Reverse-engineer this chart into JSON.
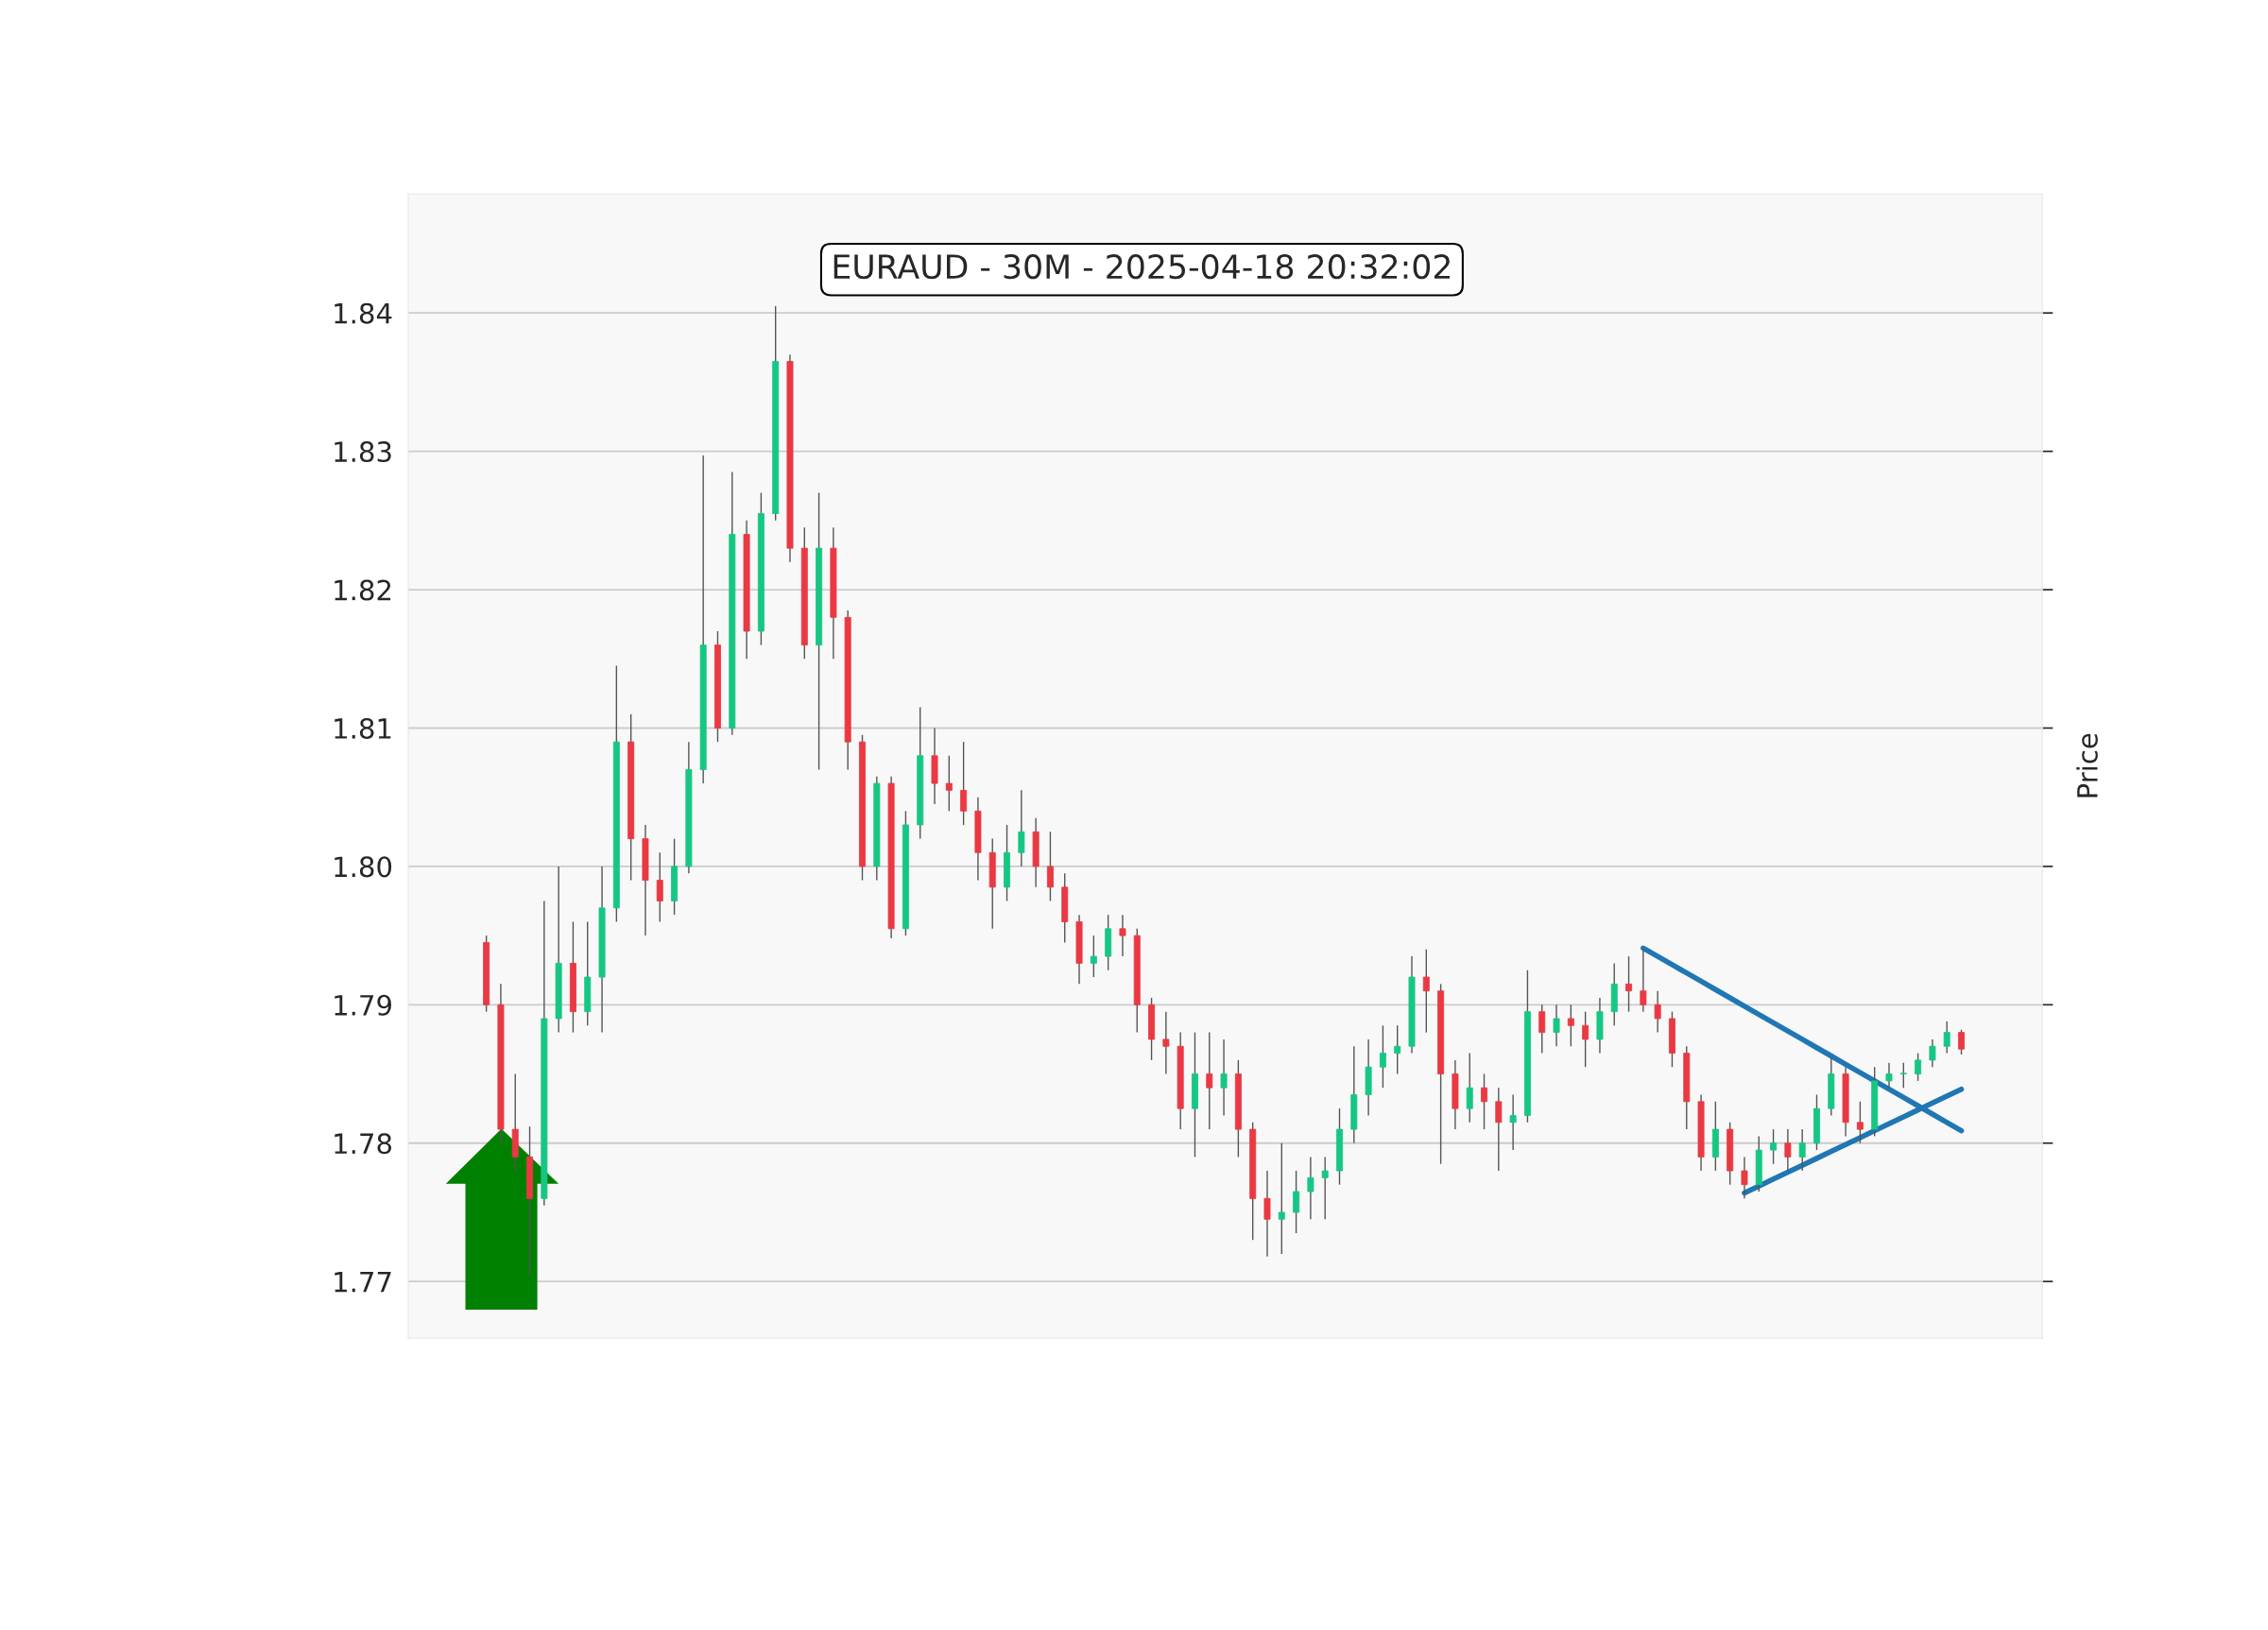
{
  "chart_data": {
    "type": "candlestick",
    "title": "EURAUD - 30M - 2025-04-18 20:32:02",
    "ylabel": "Price",
    "categories": [
      null,
      null,
      null,
      null,
      null,
      null,
      null,
      null,
      null,
      null,
      null,
      null,
      null,
      null,
      null,
      null,
      null,
      null,
      null,
      null,
      null,
      null,
      null,
      null,
      null,
      null,
      null,
      null,
      null,
      null,
      null,
      null,
      null,
      null,
      null,
      null,
      null,
      null,
      null,
      null,
      null,
      null,
      null,
      null,
      null,
      null,
      null,
      null,
      null,
      null,
      null,
      null,
      null,
      null,
      null,
      null,
      null,
      null,
      null,
      null,
      null,
      null,
      null,
      null,
      null,
      null,
      null,
      null,
      null,
      null,
      null,
      null,
      null,
      null,
      null,
      null,
      null,
      null,
      null,
      null,
      null,
      null,
      null,
      null,
      null,
      null,
      null,
      null,
      null,
      null,
      null,
      null,
      null,
      null,
      null,
      null,
      null,
      null,
      null,
      null,
      null,
      null,
      null
    ],
    "ohlc": [
      [
        1.7945,
        1.795,
        1.7895,
        1.79
      ],
      [
        1.79,
        1.7915,
        1.78,
        1.781
      ],
      [
        1.781,
        1.785,
        1.778,
        1.779
      ],
      [
        1.779,
        1.7812,
        1.7705,
        1.776
      ],
      [
        1.776,
        1.7975,
        1.7755,
        1.789
      ],
      [
        1.789,
        1.8,
        1.788,
        1.793
      ],
      [
        1.793,
        1.796,
        1.788,
        1.7895
      ],
      [
        1.7895,
        1.796,
        1.7885,
        1.792
      ],
      [
        1.792,
        1.8,
        1.788,
        1.797
      ],
      [
        1.797,
        1.8145,
        1.796,
        1.809
      ],
      [
        1.809,
        1.811,
        1.799,
        1.802
      ],
      [
        1.802,
        1.803,
        1.795,
        1.799
      ],
      [
        1.799,
        1.801,
        1.796,
        1.7975
      ],
      [
        1.7975,
        1.802,
        1.7965,
        1.8
      ],
      [
        1.8,
        1.809,
        1.7995,
        1.807
      ],
      [
        1.807,
        1.8297,
        1.806,
        1.816
      ],
      [
        1.816,
        1.817,
        1.809,
        1.81
      ],
      [
        1.81,
        1.8285,
        1.8095,
        1.824
      ],
      [
        1.824,
        1.825,
        1.815,
        1.817
      ],
      [
        1.817,
        1.827,
        1.816,
        1.8255
      ],
      [
        1.8255,
        1.8405,
        1.825,
        1.8365
      ],
      [
        1.8365,
        1.837,
        1.822,
        1.823
      ],
      [
        1.823,
        1.8245,
        1.815,
        1.816
      ],
      [
        1.816,
        1.827,
        1.807,
        1.823
      ],
      [
        1.823,
        1.8245,
        1.815,
        1.818
      ],
      [
        1.818,
        1.8185,
        1.807,
        1.809
      ],
      [
        1.809,
        1.8095,
        1.799,
        1.8
      ],
      [
        1.8,
        1.8065,
        1.799,
        1.806
      ],
      [
        1.806,
        1.8065,
        1.7948,
        1.7955
      ],
      [
        1.7955,
        1.804,
        1.795,
        1.803
      ],
      [
        1.803,
        1.8115,
        1.802,
        1.808
      ],
      [
        1.808,
        1.81,
        1.8045,
        1.806
      ],
      [
        1.806,
        1.808,
        1.804,
        1.8055
      ],
      [
        1.8055,
        1.809,
        1.803,
        1.804
      ],
      [
        1.804,
        1.805,
        1.799,
        1.801
      ],
      [
        1.801,
        1.802,
        1.7955,
        1.7985
      ],
      [
        1.7985,
        1.803,
        1.7975,
        1.801
      ],
      [
        1.801,
        1.8055,
        1.8,
        1.8025
      ],
      [
        1.8025,
        1.8035,
        1.7985,
        1.8
      ],
      [
        1.8,
        1.8025,
        1.7975,
        1.7985
      ],
      [
        1.7985,
        1.7995,
        1.7945,
        1.796
      ],
      [
        1.796,
        1.7965,
        1.7915,
        1.793
      ],
      [
        1.793,
        1.795,
        1.792,
        1.7935
      ],
      [
        1.7935,
        1.7965,
        1.7925,
        1.7955
      ],
      [
        1.7955,
        1.7965,
        1.7935,
        1.795
      ],
      [
        1.795,
        1.7955,
        1.788,
        1.79
      ],
      [
        1.79,
        1.7905,
        1.786,
        1.7875
      ],
      [
        1.7875,
        1.7895,
        1.785,
        1.787
      ],
      [
        1.787,
        1.788,
        1.781,
        1.7825
      ],
      [
        1.7825,
        1.788,
        1.779,
        1.785
      ],
      [
        1.785,
        1.788,
        1.781,
        1.784
      ],
      [
        1.784,
        1.7875,
        1.782,
        1.785
      ],
      [
        1.785,
        1.786,
        1.779,
        1.781
      ],
      [
        1.781,
        1.7815,
        1.773,
        1.776
      ],
      [
        1.776,
        1.778,
        1.7718,
        1.7745
      ],
      [
        1.7745,
        1.78,
        1.772,
        1.775
      ],
      [
        1.775,
        1.778,
        1.7735,
        1.7765
      ],
      [
        1.7765,
        1.779,
        1.7745,
        1.7775
      ],
      [
        1.7775,
        1.779,
        1.7745,
        1.778
      ],
      [
        1.778,
        1.7825,
        1.777,
        1.781
      ],
      [
        1.781,
        1.787,
        1.78,
        1.7835
      ],
      [
        1.7835,
        1.7875,
        1.782,
        1.7855
      ],
      [
        1.7855,
        1.7885,
        1.784,
        1.7865
      ],
      [
        1.7865,
        1.7885,
        1.785,
        1.787
      ],
      [
        1.787,
        1.7935,
        1.7865,
        1.792
      ],
      [
        1.792,
        1.794,
        1.788,
        1.791
      ],
      [
        1.791,
        1.7915,
        1.7785,
        1.785
      ],
      [
        1.785,
        1.786,
        1.781,
        1.7825
      ],
      [
        1.7825,
        1.7865,
        1.7815,
        1.784
      ],
      [
        1.784,
        1.785,
        1.781,
        1.783
      ],
      [
        1.783,
        1.784,
        1.778,
        1.7815
      ],
      [
        1.7815,
        1.7835,
        1.7795,
        1.782
      ],
      [
        1.782,
        1.7925,
        1.7815,
        1.7895
      ],
      [
        1.7895,
        1.79,
        1.7865,
        1.788
      ],
      [
        1.788,
        1.79,
        1.787,
        1.789
      ],
      [
        1.789,
        1.79,
        1.787,
        1.7885
      ],
      [
        1.7885,
        1.7895,
        1.7855,
        1.7875
      ],
      [
        1.7875,
        1.7905,
        1.7865,
        1.7895
      ],
      [
        1.7895,
        1.793,
        1.7885,
        1.7915
      ],
      [
        1.7915,
        1.7935,
        1.7895,
        1.791
      ],
      [
        1.791,
        1.794,
        1.7895,
        1.79
      ],
      [
        1.79,
        1.791,
        1.788,
        1.789
      ],
      [
        1.789,
        1.7895,
        1.7855,
        1.7865
      ],
      [
        1.7865,
        1.787,
        1.781,
        1.783
      ],
      [
        1.783,
        1.7835,
        1.778,
        1.779
      ],
      [
        1.779,
        1.783,
        1.778,
        1.781
      ],
      [
        1.781,
        1.7815,
        1.777,
        1.778
      ],
      [
        1.778,
        1.779,
        1.776,
        1.777
      ],
      [
        1.777,
        1.7805,
        1.7765,
        1.7795
      ],
      [
        1.7795,
        1.781,
        1.7785,
        1.78
      ],
      [
        1.78,
        1.781,
        1.778,
        1.779
      ],
      [
        1.779,
        1.781,
        1.778,
        1.78
      ],
      [
        1.78,
        1.7835,
        1.7795,
        1.7825
      ],
      [
        1.7825,
        1.7862,
        1.782,
        1.785
      ],
      [
        1.785,
        1.7855,
        1.7805,
        1.7815
      ],
      [
        1.7815,
        1.783,
        1.78,
        1.781
      ],
      [
        1.781,
        1.7855,
        1.7805,
        1.7845
      ],
      [
        1.7845,
        1.7858,
        1.784,
        1.785
      ],
      [
        1.785,
        1.7858,
        1.784,
        1.785
      ],
      [
        1.785,
        1.7865,
        1.7845,
        1.786
      ],
      [
        1.786,
        1.7875,
        1.7855,
        1.787
      ],
      [
        1.787,
        1.7888,
        1.7865,
        1.788
      ],
      [
        1.788,
        1.7882,
        1.7864,
        1.7868
      ]
    ],
    "series": [
      {
        "type": "line",
        "color": "#1f77b4",
        "values": [
          null,
          null,
          null,
          null,
          null,
          null,
          null,
          null,
          null,
          null,
          null,
          null,
          null,
          null,
          null,
          null,
          null,
          null,
          null,
          null,
          null,
          null,
          null,
          null,
          null,
          null,
          null,
          null,
          null,
          null,
          null,
          null,
          null,
          null,
          null,
          null,
          null,
          null,
          null,
          null,
          null,
          null,
          null,
          null,
          null,
          null,
          null,
          null,
          null,
          null,
          null,
          null,
          null,
          null,
          null,
          null,
          null,
          null,
          null,
          null,
          null,
          null,
          null,
          null,
          null,
          null,
          null,
          null,
          null,
          null,
          null,
          null,
          null,
          null,
          null,
          null,
          null,
          null,
          null,
          null,
          1.7941,
          1.7935,
          1.7929,
          1.7923,
          1.7917,
          1.7911,
          1.7905,
          1.7899,
          1.7893,
          1.7887,
          1.7881,
          1.7875,
          1.7869,
          1.7863,
          1.7857,
          1.7851,
          1.7845,
          1.7839,
          1.7833,
          1.7827,
          1.7821,
          1.7815,
          1.7809
        ]
      },
      {
        "type": "line",
        "color": "#1f77b4",
        "values": [
          null,
          null,
          null,
          null,
          null,
          null,
          null,
          null,
          null,
          null,
          null,
          null,
          null,
          null,
          null,
          null,
          null,
          null,
          null,
          null,
          null,
          null,
          null,
          null,
          null,
          null,
          null,
          null,
          null,
          null,
          null,
          null,
          null,
          null,
          null,
          null,
          null,
          null,
          null,
          null,
          null,
          null,
          null,
          null,
          null,
          null,
          null,
          null,
          null,
          null,
          null,
          null,
          null,
          null,
          null,
          null,
          null,
          null,
          null,
          null,
          null,
          null,
          null,
          null,
          null,
          null,
          null,
          null,
          null,
          null,
          null,
          null,
          null,
          null,
          null,
          null,
          null,
          null,
          null,
          null,
          null,
          null,
          null,
          null,
          null,
          null,
          null,
          1.7764,
          1.7769,
          1.7774,
          1.7779,
          1.7784,
          1.7789,
          1.7794,
          1.7799,
          1.7804,
          1.7809,
          1.7814,
          1.7819,
          1.7824,
          1.7829,
          1.7834,
          1.7839
        ]
      }
    ],
    "ylim": [
      1.7659,
      1.8486
    ],
    "yticks": [
      1.77,
      1.78,
      1.79,
      {
        "value": 1.8,
        "label": "1.80"
      },
      1.81,
      1.82,
      1.83,
      1.84
    ],
    "grid": "y",
    "tick_labels": "y",
    "legend": false
  }
}
